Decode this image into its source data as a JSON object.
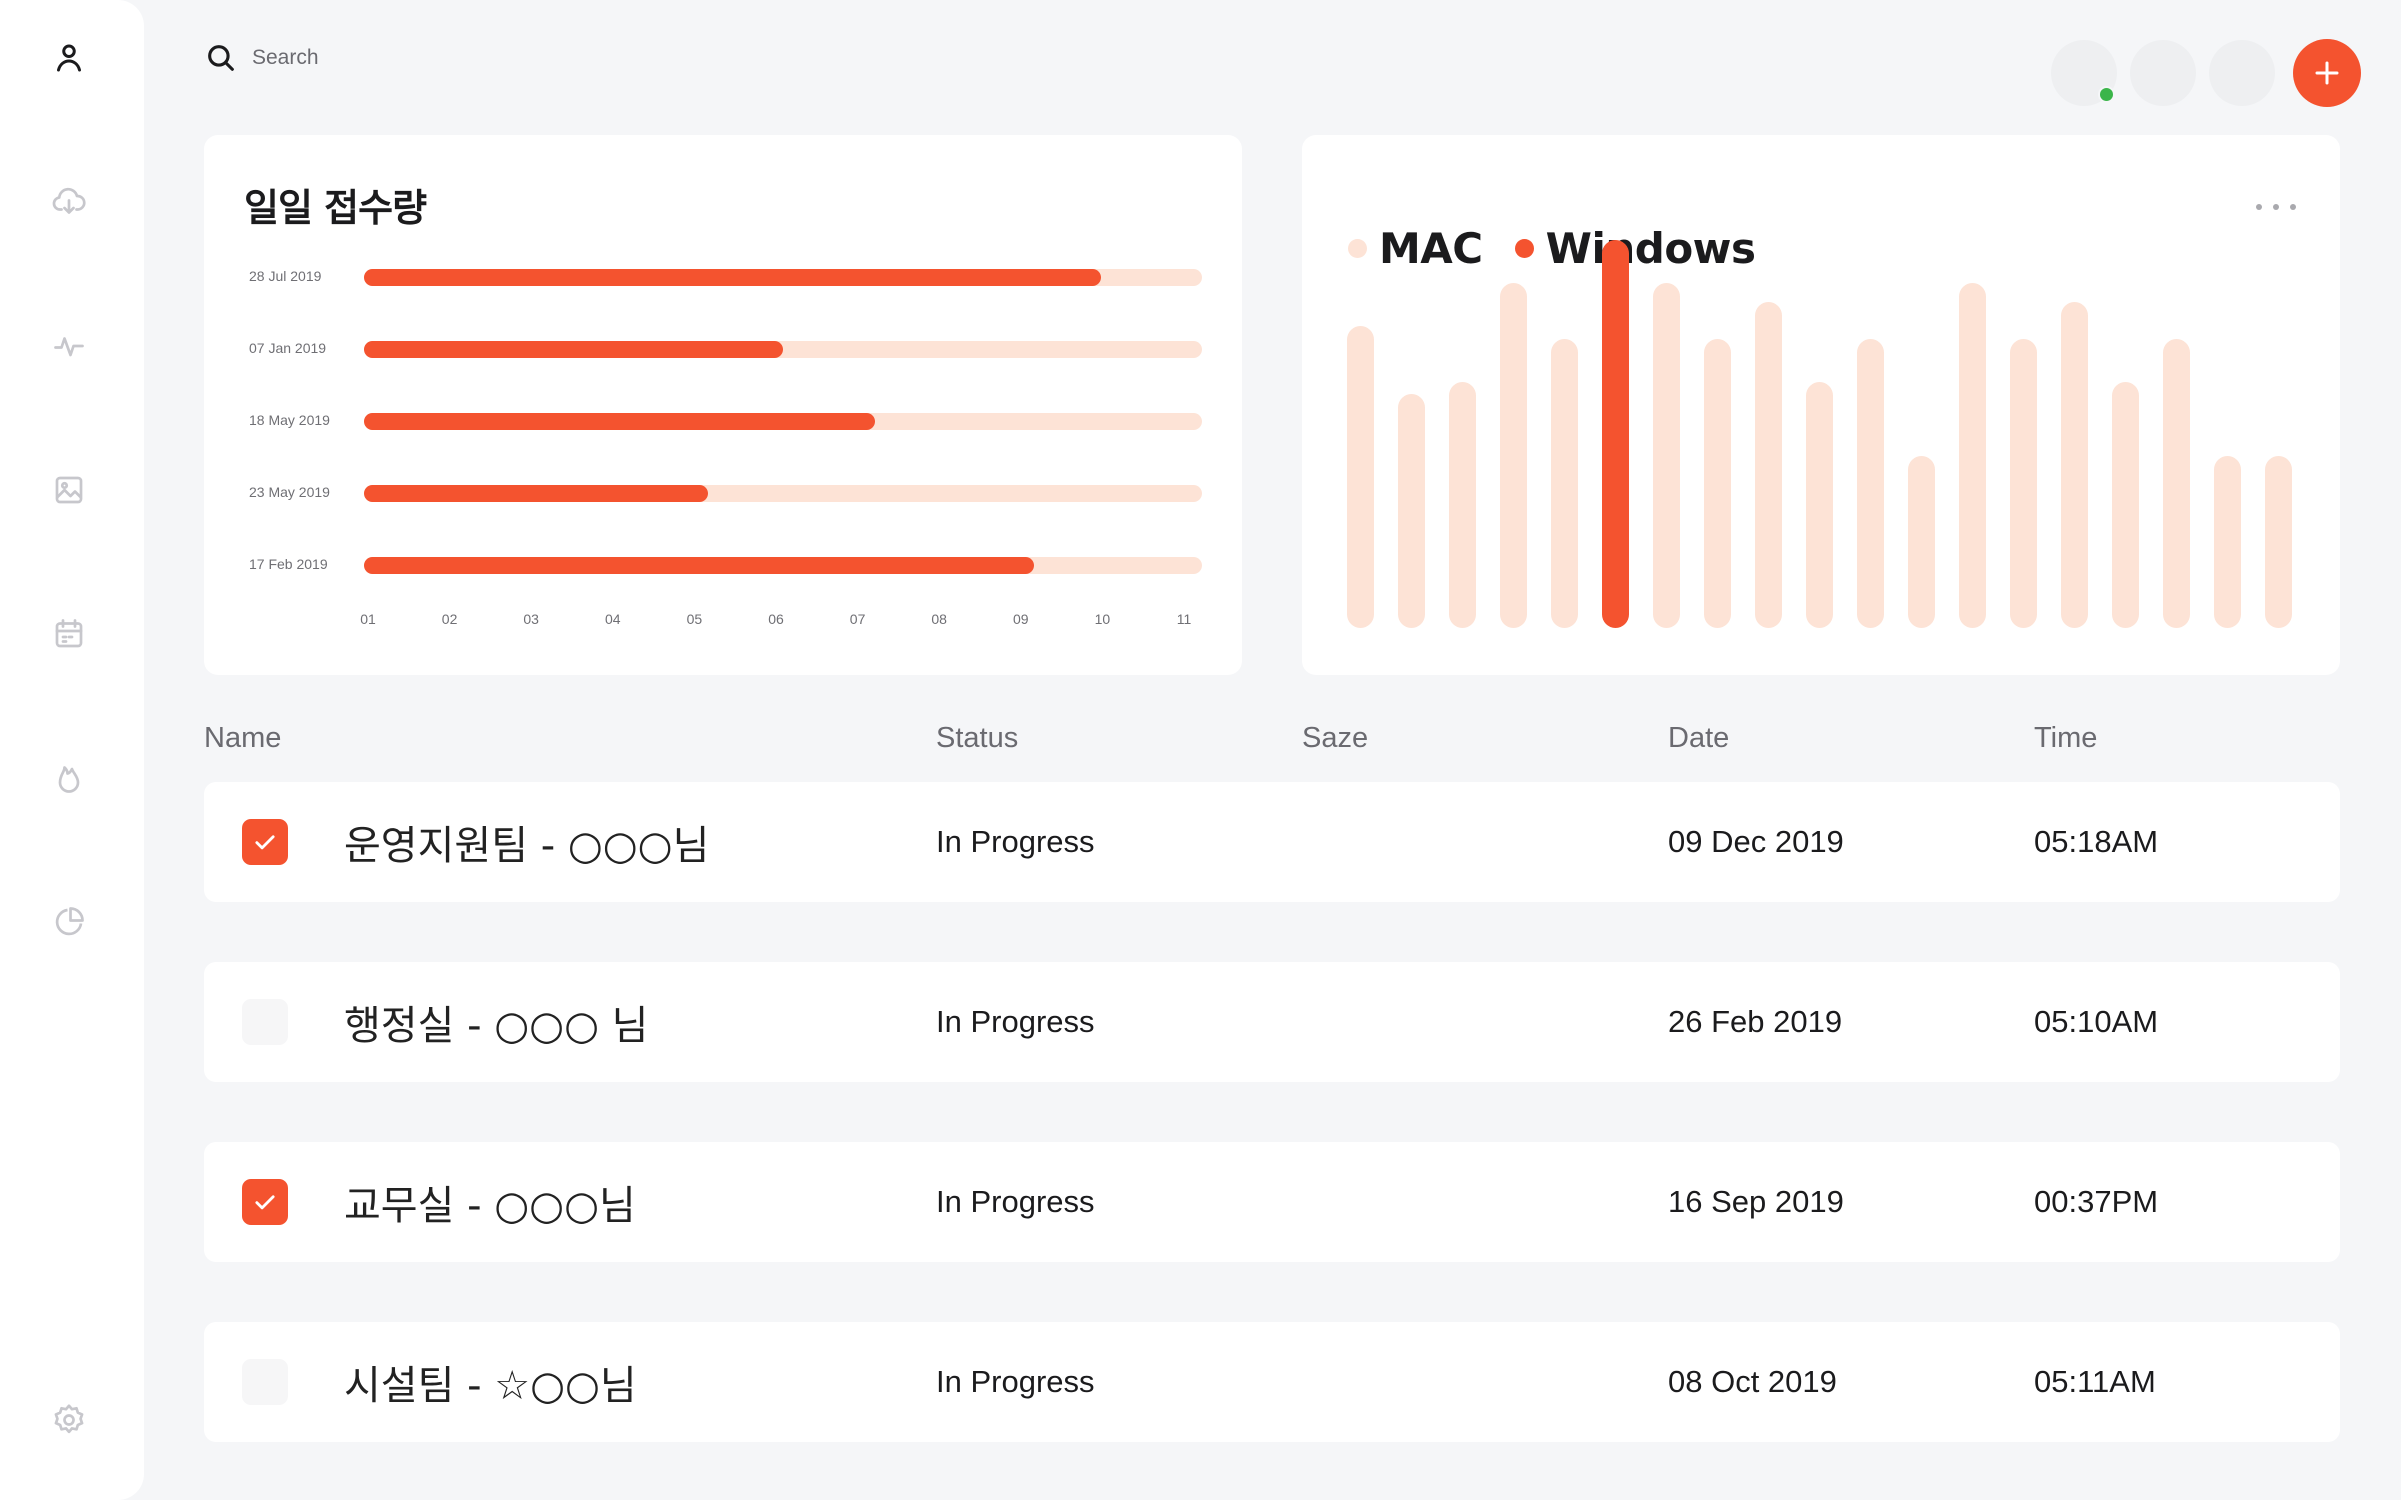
{
  "sidebar": {
    "items": [
      {
        "icon": "user-icon"
      },
      {
        "icon": "cloud-download-icon"
      },
      {
        "icon": "activity-icon"
      },
      {
        "icon": "image-icon"
      },
      {
        "icon": "calendar-icon"
      },
      {
        "icon": "fire-icon"
      },
      {
        "icon": "pie-chart-icon"
      }
    ],
    "settings_icon": "gear-icon"
  },
  "search": {
    "placeholder": "Search"
  },
  "header": {
    "add_icon": "plus-icon",
    "online_color": "#3bb54a"
  },
  "colors": {
    "accent": "#f4532f",
    "accent_light": "#fde3d6"
  },
  "chart_data": [
    {
      "type": "bar",
      "orientation": "horizontal",
      "title": "일일 접수량",
      "categories": [
        "28 Jul 2019",
        "07 Jan 2019",
        "18 May 2019",
        "23 May 2019",
        "17 Feb 2019"
      ],
      "values": [
        9.8,
        6.0,
        7.1,
        5.1,
        9.0
      ],
      "x_ticks": [
        "01",
        "02",
        "03",
        "04",
        "05",
        "06",
        "07",
        "08",
        "09",
        "10",
        "11"
      ],
      "xlim": [
        1,
        11
      ]
    },
    {
      "type": "bar",
      "series": [
        {
          "name": "MAC",
          "color": "#fde3d6"
        },
        {
          "name": "Windows",
          "color": "#f4532f"
        }
      ],
      "values": [
        49,
        38,
        40,
        56,
        47,
        63,
        56,
        47,
        53,
        40,
        47,
        28,
        56,
        47,
        53,
        40,
        47,
        28,
        28
      ],
      "highlight_index": 5,
      "ylim": [
        0,
        65
      ]
    }
  ],
  "table": {
    "headers": {
      "name": "Name",
      "status": "Status",
      "size": "Saze",
      "date": "Date",
      "time": "Time"
    },
    "rows": [
      {
        "name": "운영지원팀 - ○○○님",
        "status": "In Progress",
        "date": "09 Dec 2019",
        "time": "05:18AM",
        "checked": true
      },
      {
        "name": "행정실 - ○○○ 님",
        "status": "In Progress",
        "date": "26 Feb 2019",
        "time": "05:10AM",
        "checked": false
      },
      {
        "name": "교무실 - ○○○님",
        "status": "In Progress",
        "date": "16 Sep 2019",
        "time": "00:37PM",
        "checked": true
      },
      {
        "name": "시설팀 - ☆○○님",
        "status": "In Progress",
        "date": "08 Oct 2019",
        "time": "05:11AM",
        "checked": false
      }
    ]
  }
}
